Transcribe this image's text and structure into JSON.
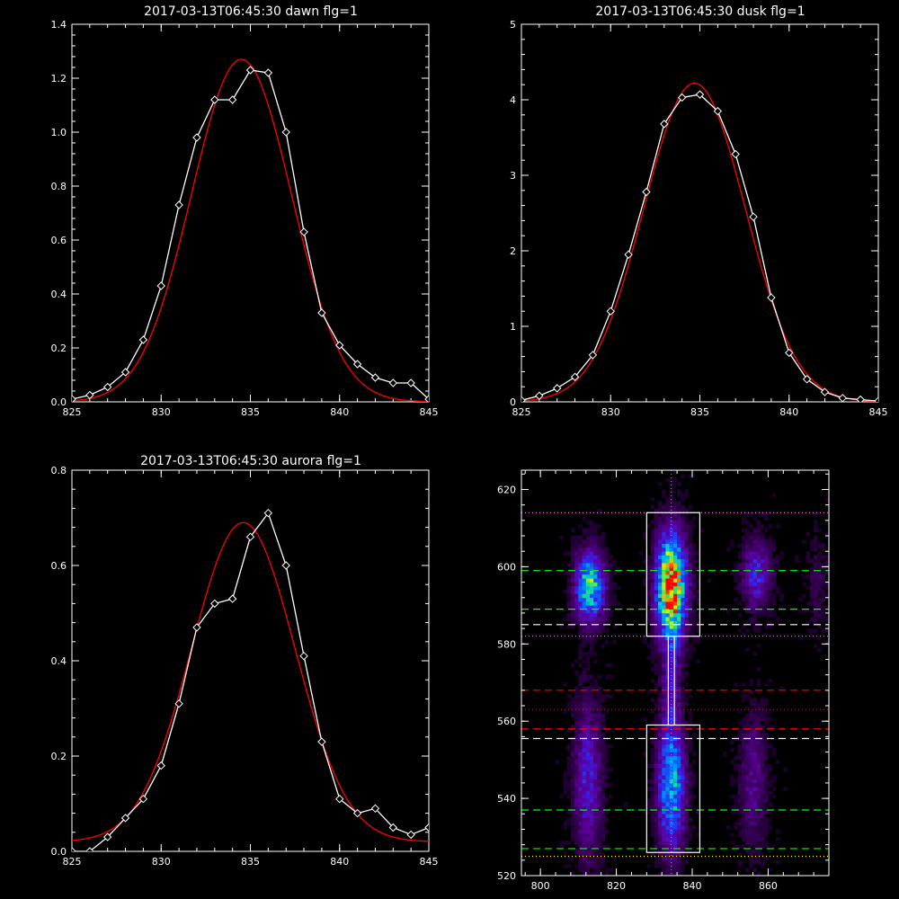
{
  "chart_data": [
    {
      "type": "line",
      "title": "2017-03-13T06:45:30 dawn flg=1",
      "xlim": [
        825,
        845
      ],
      "ylim": [
        0.0,
        1.4
      ],
      "xticks": [
        825,
        830,
        835,
        840,
        845
      ],
      "yticks": [
        0.0,
        0.2,
        0.4,
        0.6,
        0.8,
        1.0,
        1.2,
        1.4
      ],
      "ytick_labels": [
        "0.0",
        "0.2",
        "0.4",
        "0.6",
        "0.8",
        "1.0",
        "1.2",
        "1.4"
      ],
      "grid": false,
      "series": [
        {
          "color": "#ffffff",
          "marker": "diamond",
          "x": [
            825,
            826,
            827,
            828,
            829,
            830,
            831,
            832,
            833,
            834,
            835,
            836,
            837,
            838,
            839,
            840,
            841,
            842,
            843,
            844,
            845
          ],
          "y": [
            0.01,
            0.025,
            0.055,
            0.11,
            0.23,
            0.43,
            0.73,
            0.98,
            1.12,
            1.12,
            1.23,
            1.22,
            1.0,
            0.63,
            0.33,
            0.21,
            0.14,
            0.09,
            0.07,
            0.07,
            0.01
          ]
        },
        {
          "color": "#ff0000",
          "fit": "gaussian",
          "amplitude": 1.27,
          "center": 834.5,
          "sigma": 2.8,
          "baseline": 0.0
        }
      ]
    },
    {
      "type": "line",
      "title": "2017-03-13T06:45:30 dusk flg=1",
      "xlim": [
        825,
        845
      ],
      "ylim": [
        0,
        5
      ],
      "xticks": [
        825,
        830,
        835,
        840,
        845
      ],
      "yticks": [
        0,
        1,
        2,
        3,
        4,
        5
      ],
      "ytick_labels": [
        "0",
        "1",
        "2",
        "3",
        "4",
        "5"
      ],
      "grid": false,
      "series": [
        {
          "color": "#ffffff",
          "marker": "diamond",
          "x": [
            825,
            826,
            827,
            828,
            829,
            830,
            831,
            832,
            833,
            834,
            835,
            836,
            837,
            838,
            839,
            840,
            841,
            842,
            843,
            844,
            845
          ],
          "y": [
            0.02,
            0.08,
            0.18,
            0.33,
            0.62,
            1.2,
            1.95,
            2.78,
            3.68,
            4.03,
            4.07,
            3.85,
            3.28,
            2.45,
            1.38,
            0.65,
            0.3,
            0.13,
            0.05,
            0.03,
            0.01
          ]
        },
        {
          "color": "#ff0000",
          "fit": "gaussian",
          "amplitude": 4.22,
          "center": 834.7,
          "sigma": 2.85,
          "baseline": 0.0
        }
      ]
    },
    {
      "type": "line",
      "title": "2017-03-13T06:45:30 aurora flg=1",
      "xlim": [
        825,
        845
      ],
      "ylim": [
        0.0,
        0.8
      ],
      "xticks": [
        825,
        830,
        835,
        840,
        845
      ],
      "yticks": [
        0.0,
        0.2,
        0.4,
        0.6,
        0.8
      ],
      "ytick_labels": [
        "0.0",
        "0.2",
        "0.4",
        "0.6",
        "0.8"
      ],
      "grid": false,
      "series": [
        {
          "color": "#ffffff",
          "marker": "diamond",
          "x": [
            825,
            826,
            827,
            828,
            829,
            830,
            831,
            832,
            833,
            834,
            835,
            836,
            837,
            838,
            839,
            840,
            841,
            842,
            843,
            844,
            845
          ],
          "y": [
            0.0,
            0.0,
            0.03,
            0.07,
            0.11,
            0.18,
            0.31,
            0.47,
            0.52,
            0.53,
            0.66,
            0.71,
            0.6,
            0.41,
            0.23,
            0.11,
            0.08,
            0.09,
            0.05,
            0.035,
            0.05
          ]
        },
        {
          "color": "#ff0000",
          "fit": "gaussian",
          "amplitude": 0.67,
          "center": 834.6,
          "sigma": 2.9,
          "baseline": 0.02
        }
      ]
    },
    {
      "type": "heatmap",
      "title": "",
      "xlim": [
        795,
        876
      ],
      "ylim": [
        520,
        625
      ],
      "xticks": [
        800,
        820,
        840,
        860
      ],
      "yticks": [
        520,
        540,
        560,
        580,
        600,
        620
      ],
      "xtick_labels": [
        "800",
        "820",
        "840",
        "860"
      ],
      "ytick_labels": [
        "520",
        "540",
        "560",
        "580",
        "600",
        "620"
      ],
      "colormap": "rainbow",
      "blobs": [
        {
          "x": 834.5,
          "y": 595,
          "sx": 2.6,
          "sy": 9,
          "amp": 1.0
        },
        {
          "x": 834.5,
          "y": 543,
          "sx": 2.4,
          "sy": 11,
          "amp": 0.55
        },
        {
          "x": 813.0,
          "y": 595,
          "sx": 2.6,
          "sy": 6,
          "amp": 0.65
        },
        {
          "x": 812.5,
          "y": 545,
          "sx": 2.5,
          "sy": 14,
          "amp": 0.28
        },
        {
          "x": 857.0,
          "y": 598,
          "sx": 2.6,
          "sy": 6,
          "amp": 0.3
        },
        {
          "x": 856.0,
          "y": 545,
          "sx": 2.4,
          "sy": 12,
          "amp": 0.18
        },
        {
          "x": 834.5,
          "y": 570,
          "sx": 1.6,
          "sy": 10,
          "amp": 0.22
        },
        {
          "x": 873.0,
          "y": 595,
          "sx": 2.0,
          "sy": 8,
          "amp": 0.08
        }
      ],
      "boxes": [
        {
          "x0": 828,
          "x1": 842,
          "y0": 582,
          "y1": 614,
          "color": "#ffffff"
        },
        {
          "x0": 828,
          "x1": 842,
          "y0": 526,
          "y1": 559,
          "color": "#ffffff"
        },
        {
          "x0": 833.7,
          "x1": 835.3,
          "y0": 559,
          "y1": 582,
          "color": "#ffffff"
        }
      ],
      "hlines": [
        {
          "y": 614,
          "color": "#ff66ff",
          "style": "dotted"
        },
        {
          "y": 599,
          "color": "#00ff00",
          "style": "dashed"
        },
        {
          "y": 589,
          "color": "#00ff00",
          "style": "dashed"
        },
        {
          "y": 585,
          "color": "#ffffff",
          "style": "dashed"
        },
        {
          "y": 582,
          "color": "#ff66ff",
          "style": "dotted"
        },
        {
          "y": 568,
          "color": "#ff0000",
          "style": "dashed"
        },
        {
          "y": 563,
          "color": "#ff0000",
          "style": "dotted"
        },
        {
          "y": 558,
          "color": "#ff0000",
          "style": "dashed"
        },
        {
          "y": 555.5,
          "color": "#ffffff",
          "style": "dashed"
        },
        {
          "y": 537,
          "color": "#00ff00",
          "style": "dashed"
        },
        {
          "y": 527,
          "color": "#00ff00",
          "style": "dashed"
        },
        {
          "y": 525,
          "color": "#ffff00",
          "style": "dotted"
        }
      ],
      "vlines": [
        {
          "x": 834.5,
          "color": "#ff66ff",
          "style": "dotted"
        }
      ]
    }
  ]
}
